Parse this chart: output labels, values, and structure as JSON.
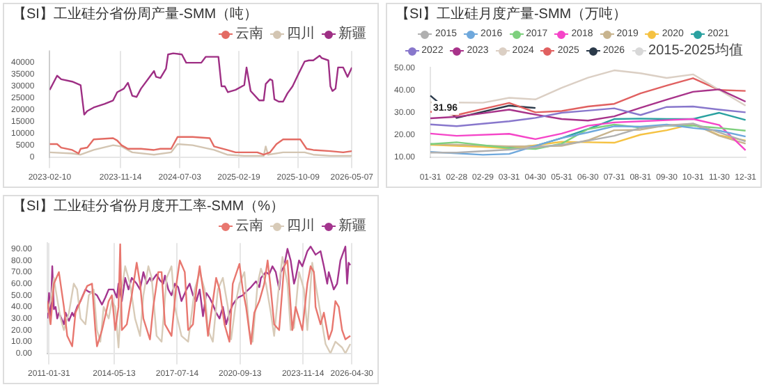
{
  "chart_data": [
    {
      "type": "line",
      "title": "【SI】工业硅分省份周产量-SMM（吨）",
      "legend": "top right",
      "grid": "x",
      "xlim": [
        "2023-02-10",
        "2026-05-07"
      ],
      "xticks": [
        "2023-02-10",
        "2023-11-14",
        "2024-07-03",
        "2025-02-19",
        "2025-10-09",
        "2026-05-07"
      ],
      "ylim": [
        0,
        45000
      ],
      "yticks": [
        0,
        5000,
        10000,
        15000,
        20000,
        25000,
        30000,
        35000,
        40000
      ],
      "series": [
        {
          "name": "云南",
          "color": "#e36b63",
          "x": [
            "2023-02-10",
            "2023-03-11",
            "2023-03-27",
            "2023-05-09",
            "2023-06-03",
            "2023-06-11",
            "2023-07-07",
            "2023-08-01",
            "2023-10-16",
            "2023-11-01",
            "2023-11-18",
            "2023-12-13",
            "2024-02-02",
            "2024-03-24",
            "2024-04-18",
            "2024-05-30",
            "2024-06-24",
            "2024-08-22",
            "2024-10-28",
            "2024-11-14",
            "2025-01-04",
            "2025-02-06",
            "2025-05-02",
            "2025-05-27",
            "2025-06-21",
            "2025-07-16",
            "2025-08-11",
            "2025-10-17",
            "2025-11-11",
            "2025-12-07",
            "2026-02-12",
            "2026-04-03",
            "2026-05-07"
          ],
          "values": [
            5500,
            5500,
            4000,
            3000,
            1500,
            3500,
            4000,
            7500,
            8000,
            7000,
            5000,
            3500,
            3500,
            3000,
            3500,
            3500,
            8500,
            8500,
            8000,
            4500,
            3000,
            2000,
            2000,
            1000,
            2000,
            5500,
            7500,
            7500,
            3500,
            3000,
            2500,
            2000,
            2500
          ]
        },
        {
          "name": "四川",
          "color": "#d3c5b2",
          "x": [
            "2023-02-10",
            "2023-05-09",
            "2023-06-11",
            "2023-08-01",
            "2023-10-16",
            "2023-11-18",
            "2023-12-30",
            "2024-03-24",
            "2024-05-30",
            "2024-06-24",
            "2024-08-22",
            "2024-11-14",
            "2025-01-04",
            "2025-03-12",
            "2025-05-27",
            "2025-06-04",
            "2025-06-13",
            "2025-08-11",
            "2025-11-03",
            "2025-12-07",
            "2026-02-12",
            "2026-05-07"
          ],
          "values": [
            2000,
            1500,
            1000,
            3000,
            5000,
            4500,
            2000,
            1000,
            2000,
            5500,
            5000,
            3000,
            1000,
            500,
            500,
            4500,
            1000,
            2000,
            2000,
            1000,
            500,
            500
          ]
        },
        {
          "name": "新疆",
          "color": "#9e2f84",
          "x": [
            "2023-02-10",
            "2023-03-11",
            "2023-03-27",
            "2023-05-09",
            "2023-06-11",
            "2023-06-25",
            "2023-07-07",
            "2023-08-01",
            "2023-09-12",
            "2023-10-16",
            "2023-11-01",
            "2023-11-27",
            "2023-12-13",
            "2023-12-30",
            "2024-01-16",
            "2024-02-02",
            "2024-03-07",
            "2024-03-24",
            "2024-04-01",
            "2024-04-18",
            "2024-05-10",
            "2024-05-18",
            "2024-06-07",
            "2024-07-11",
            "2024-07-28",
            "2024-09-25",
            "2024-10-12",
            "2024-12-01",
            "2024-12-13",
            "2024-12-26",
            "2025-01-07",
            "2025-02-06",
            "2025-03-12",
            "2025-03-21",
            "2025-04-06",
            "2025-05-10",
            "2025-05-27",
            "2025-06-04",
            "2025-06-21",
            "2025-06-30",
            "2025-07-08",
            "2025-07-25",
            "2025-08-11",
            "2025-08-28",
            "2025-09-17",
            "2025-10-09",
            "2025-11-03",
            "2025-11-20",
            "2025-12-07",
            "2026-01-01",
            "2026-01-09",
            "2026-02-04",
            "2026-02-12",
            "2026-02-20",
            "2026-03-04",
            "2026-03-14",
            "2026-04-03",
            "2026-04-20",
            "2026-05-07"
          ],
          "values": [
            28500,
            34500,
            33000,
            32000,
            30500,
            18000,
            19500,
            21000,
            22500,
            24000,
            27500,
            29000,
            31500,
            26000,
            25500,
            29000,
            34000,
            36500,
            34000,
            33500,
            37500,
            43500,
            44000,
            43500,
            40000,
            40000,
            42500,
            42500,
            30000,
            30000,
            27500,
            28500,
            30500,
            38000,
            28000,
            24000,
            24000,
            31000,
            33000,
            32500,
            24500,
            23500,
            23500,
            27000,
            30000,
            35000,
            40500,
            41000,
            41000,
            43000,
            42000,
            41000,
            30000,
            28000,
            29000,
            38000,
            38000,
            34000,
            38000
          ]
        }
      ]
    },
    {
      "type": "line",
      "title": "【SI】工业硅月度产量-SMM（万吨）",
      "legend": "top",
      "categories": [
        "01-31",
        "02-28",
        "02-29",
        "03-31",
        "04-30",
        "05-31",
        "06-30",
        "07-31",
        "08-31",
        "09-30",
        "10-31",
        "11-30",
        "12-31"
      ],
      "ylim": [
        10,
        50
      ],
      "yticks": [
        {
          "value": 10,
          "label": "10.00"
        },
        {
          "value": 20,
          "label": "20.00"
        },
        {
          "value": 30,
          "label": "30.00"
        },
        {
          "value": 40,
          "label": "40.00"
        },
        {
          "value": 50,
          "label": "50.00"
        }
      ],
      "annotations": [
        {
          "text": "31.96",
          "y": 31.96
        }
      ],
      "series": [
        {
          "name": "2015",
          "color": "#b0b0b0",
          "values": [
            12,
            12,
            null,
            13.3,
            14.3,
            15.5,
            17.3,
            19.5,
            23,
            24,
            25,
            21,
            17
          ]
        },
        {
          "name": "2016",
          "color": "#6fa8dc",
          "values": [
            12.3,
            null,
            11,
            11.4,
            15,
            18.5,
            21,
            23.8,
            23.6,
            24.5,
            23,
            21.8,
            19.2
          ]
        },
        {
          "name": "2017",
          "color": "#7ed07e",
          "values": [
            15.8,
            16.6,
            null,
            14,
            13.6,
            16,
            22.5,
            24.5,
            23.2,
            24,
            24,
            23,
            21.8
          ]
        },
        {
          "name": "2018",
          "color": "#f545c8",
          "values": [
            20.5,
            19.5,
            null,
            20.4,
            18,
            20.5,
            24,
            25.5,
            26,
            26.5,
            27,
            24.3,
            13
          ]
        },
        {
          "name": "2019",
          "color": "#c8b48e",
          "values": [
            15.8,
            15.5,
            null,
            14.8,
            14.8,
            15,
            17.5,
            22,
            22.2,
            24.3,
            24.8,
            19.5,
            16
          ]
        },
        {
          "name": "2020",
          "color": "#f5c242",
          "values": [
            15.5,
            null,
            14.5,
            13.8,
            15.3,
            16.8,
            16.6,
            16.4,
            20,
            22,
            24.8,
            19.7,
            17.4
          ]
        },
        {
          "name": "2021",
          "color": "#2aa1a0",
          "values": [
            15.8,
            15.2,
            null,
            14.5,
            15,
            18.5,
            22.5,
            27,
            27.2,
            27,
            27,
            29.8,
            26.6
          ]
        },
        {
          "name": "2022",
          "color": "#8877cc",
          "values": [
            24.6,
            23.8,
            null,
            26,
            27.5,
            29.8,
            30.8,
            31.8,
            28.8,
            32.4,
            32.6,
            31.2,
            30
          ]
        },
        {
          "name": "2023",
          "color": "#a8338a",
          "values": [
            27.3,
            28,
            null,
            31.2,
            29,
            27,
            26.3,
            28.2,
            32,
            35.7,
            39.2,
            40.3,
            34.8
          ]
        },
        {
          "name": "2024",
          "color": "#dbcfc4",
          "values": [
            34.5,
            null,
            34.3,
            36.5,
            35.8,
            41,
            45.5,
            48.8,
            47.5,
            45.4,
            47,
            40,
            33
          ]
        },
        {
          "name": "2025",
          "color": "#e06060",
          "values": [
            30.3,
            28.8,
            null,
            34.2,
            30,
            30.6,
            32.6,
            33.8,
            38.5,
            42,
            45.3,
            40,
            39.6
          ]
        },
        {
          "name": "2026",
          "color": "#2b3a4a",
          "values": [
            37.5,
            27.5,
            null,
            33,
            31.96,
            null,
            null,
            null,
            null,
            null,
            null,
            null,
            null
          ]
        },
        {
          "name": "2015-2025均值",
          "color": "#d8d8d8",
          "values": [
            null,
            null,
            null,
            null,
            null,
            null,
            null,
            null,
            null,
            null,
            null,
            null,
            null
          ]
        }
      ]
    },
    {
      "type": "line",
      "title": "【SI】工业硅分省份月度开工率-SMM（%）",
      "legend": "top right",
      "grid": "x",
      "xlim": [
        "2011-01",
        "2026-04-30"
      ],
      "xticks": [
        "2011-01-31",
        "2014-05-13",
        "2017-07-14",
        "2020-09-13",
        "2023-11-14",
        "2026-04-30"
      ],
      "ylim": [
        0,
        95
      ],
      "yticks": [
        {
          "value": 0,
          "label": "0.00"
        },
        {
          "value": 10,
          "label": "10.00"
        },
        {
          "value": 20,
          "label": "20.00"
        },
        {
          "value": 30,
          "label": "30.00"
        },
        {
          "value": 40,
          "label": "40.00"
        },
        {
          "value": 50,
          "label": "50.00"
        },
        {
          "value": 60,
          "label": "60.00"
        },
        {
          "value": 70,
          "label": "70.00"
        },
        {
          "value": 80,
          "label": "80.00"
        },
        {
          "value": 90,
          "label": "90.00"
        }
      ],
      "series": [
        {
          "name": "云南",
          "color": "#e8776f",
          "x": [
            "2011-01",
            "2011-03",
            "2011-05",
            "2011-08",
            "2011-11",
            "2012-01",
            "2012-04",
            "2012-06",
            "2012-09",
            "2013-01",
            "2013-04",
            "2013-06",
            "2013-07",
            "2013-10",
            "2014-02",
            "2014-04",
            "2014-06",
            "2014-08",
            "2014-09",
            "2014-10",
            "2015-01",
            "2015-04",
            "2015-07",
            "2015-09",
            "2015-11",
            "2016-03",
            "2016-05",
            "2016-08",
            "2016-10",
            "2016-12",
            "2017-04",
            "2017-07",
            "2017-09",
            "2017-12",
            "2018-02",
            "2018-05",
            "2018-07",
            "2018-09",
            "2018-12",
            "2019-02",
            "2019-04",
            "2019-07",
            "2019-09",
            "2019-12",
            "2020-03",
            "2020-05",
            "2020-09",
            "2020-11",
            "2021-01",
            "2021-04",
            "2021-06",
            "2021-09",
            "2021-12",
            "2022-02",
            "2022-04",
            "2022-06",
            "2022-09",
            "2022-12",
            "2023-02",
            "2023-04",
            "2023-05",
            "2023-07",
            "2023-09",
            "2023-11",
            "2024-02",
            "2024-04",
            "2024-06",
            "2024-07",
            "2024-10",
            "2024-12",
            "2025-03",
            "2025-05",
            "2025-07",
            "2025-09",
            "2025-11",
            "2026-01",
            "2026-04"
          ],
          "values": [
            45,
            25,
            60,
            70,
            40,
            15,
            6,
            35,
            45,
            58,
            60,
            20,
            6,
            20,
            45,
            50,
            20,
            40,
            94,
            20,
            25,
            50,
            78,
            60,
            30,
            12,
            40,
            70,
            70,
            25,
            15,
            60,
            80,
            70,
            20,
            25,
            55,
            75,
            45,
            15,
            35,
            65,
            55,
            25,
            10,
            60,
            77,
            55,
            40,
            8,
            35,
            45,
            60,
            80,
            55,
            25,
            20,
            75,
            80,
            40,
            20,
            40,
            30,
            20,
            60,
            75,
            70,
            40,
            25,
            35,
            12,
            20,
            45,
            40,
            20,
            12,
            15
          ]
        },
        {
          "name": "四川",
          "color": "#d8cbb8",
          "x": [
            "2011-01",
            "2011-03",
            "2011-05",
            "2011-06",
            "2011-09",
            "2011-11",
            "2012-02",
            "2012-05",
            "2012-07",
            "2012-09",
            "2012-12",
            "2013-02",
            "2013-05",
            "2013-07",
            "2013-09",
            "2013-11",
            "2014-02",
            "2014-04",
            "2014-06",
            "2014-08",
            "2014-10",
            "2014-12",
            "2015-03",
            "2015-06",
            "2015-09",
            "2015-11",
            "2016-02",
            "2016-04",
            "2016-07",
            "2016-10",
            "2017-01",
            "2017-04",
            "2017-06",
            "2017-10",
            "2018-02",
            "2018-06",
            "2018-09",
            "2018-12",
            "2019-02",
            "2019-05",
            "2019-08",
            "2019-11",
            "2020-02",
            "2020-04",
            "2020-07",
            "2020-09",
            "2020-12",
            "2021-03",
            "2021-05",
            "2021-08",
            "2021-10",
            "2022-01",
            "2022-04",
            "2022-06",
            "2022-09",
            "2022-11",
            "2023-02",
            "2023-04",
            "2023-06",
            "2023-09",
            "2023-12",
            "2024-02",
            "2024-05",
            "2024-07",
            "2024-11",
            "2025-01",
            "2025-04",
            "2025-07",
            "2025-11",
            "2026-01",
            "2026-04"
          ],
          "values": [
            35,
            45,
            65,
            55,
            30,
            20,
            35,
            60,
            55,
            30,
            25,
            50,
            55,
            20,
            10,
            40,
            30,
            45,
            40,
            5,
            55,
            75,
            60,
            30,
            15,
            50,
            75,
            65,
            15,
            10,
            65,
            75,
            40,
            15,
            10,
            55,
            70,
            55,
            20,
            10,
            55,
            65,
            40,
            12,
            45,
            60,
            70,
            20,
            10,
            60,
            73,
            60,
            35,
            15,
            60,
            83,
            60,
            20,
            22,
            70,
            55,
            20,
            78,
            60,
            25,
            8,
            0,
            10,
            5,
            0,
            8
          ]
        },
        {
          "name": "新疆",
          "color": "#a3358e",
          "x": [
            "2011-01",
            "2011-02",
            "2011-03",
            "2011-04",
            "2011-05",
            "2011-06",
            "2011-07",
            "2011-08",
            "2011-11",
            "2011-12",
            "2012-02",
            "2012-04",
            "2012-05",
            "2012-07",
            "2012-09",
            "2012-12",
            "2013-02",
            "2013-05",
            "2013-07",
            "2013-10",
            "2013-12",
            "2014-02",
            "2014-05",
            "2014-07",
            "2014-08",
            "2014-10",
            "2014-12",
            "2015-02",
            "2015-04",
            "2015-07",
            "2015-09",
            "2015-11",
            "2016-01",
            "2016-03",
            "2016-04",
            "2016-07",
            "2016-09",
            "2016-11",
            "2016-12",
            "2017-02",
            "2017-04",
            "2017-06",
            "2017-08",
            "2017-10",
            "2018-01",
            "2018-03",
            "2018-05",
            "2018-07",
            "2018-09",
            "2018-11",
            "2019-01",
            "2019-03",
            "2019-05",
            "2019-07",
            "2019-09",
            "2019-11",
            "2020-01",
            "2020-03",
            "2020-05",
            "2020-08",
            "2020-11",
            "2021-01",
            "2021-04",
            "2021-07",
            "2021-09",
            "2021-10",
            "2022-01",
            "2022-03",
            "2022-05",
            "2022-07",
            "2022-09",
            "2022-10",
            "2022-12",
            "2023-02",
            "2023-04",
            "2023-06",
            "2023-07",
            "2023-09",
            "2023-11",
            "2024-02",
            "2024-04",
            "2024-07",
            "2024-10",
            "2024-12",
            "2025-02",
            "2025-03",
            "2025-06",
            "2025-08",
            "2025-10",
            "2025-12",
            "2026-01",
            "2026-02",
            "2026-03",
            "2026-04"
          ],
          "values": [
            30,
            52,
            28,
            75,
            38,
            40,
            30,
            35,
            25,
            35,
            28,
            35,
            32,
            40,
            45,
            55,
            53,
            52,
            50,
            42,
            48,
            55,
            55,
            48,
            60,
            45,
            65,
            55,
            65,
            60,
            55,
            70,
            60,
            65,
            62,
            68,
            63,
            60,
            67,
            55,
            50,
            60,
            57,
            45,
            55,
            60,
            50,
            45,
            55,
            32,
            52,
            48,
            42,
            35,
            30,
            40,
            25,
            35,
            42,
            48,
            50,
            53,
            57,
            62,
            57,
            65,
            70,
            68,
            75,
            70,
            55,
            70,
            75,
            90,
            80,
            60,
            65,
            80,
            75,
            88,
            92,
            85,
            88,
            75,
            60,
            70,
            55,
            60,
            80,
            88,
            92,
            60,
            78,
            76
          ]
        }
      ]
    }
  ]
}
